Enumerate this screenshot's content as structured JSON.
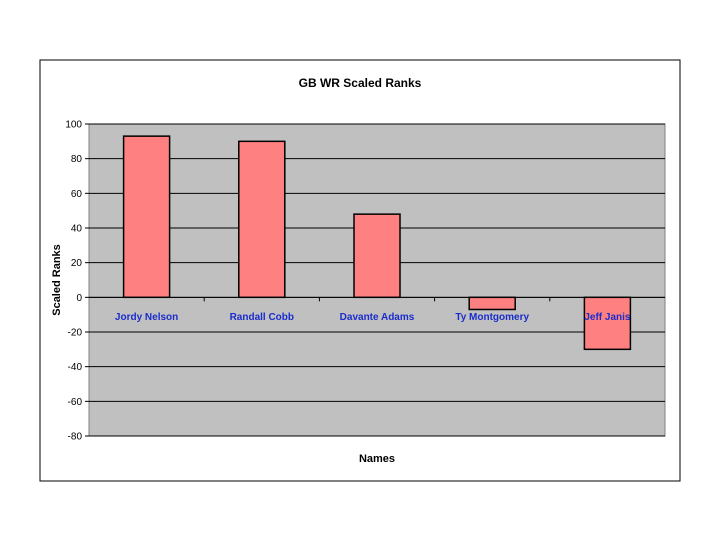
{
  "chart_data": {
    "type": "bar",
    "title": "GB WR Scaled Ranks",
    "xlabel": "Names",
    "ylabel": "Scaled Ranks",
    "categories": [
      "Jordy Nelson",
      "Randall Cobb",
      "Davante Adams",
      "Ty Montgomery",
      "Jeff Janis"
    ],
    "values": [
      93,
      90,
      48,
      -7,
      -30
    ],
    "ylim": [
      -80,
      100
    ],
    "yticks": [
      "100",
      "80",
      "60",
      "40",
      "20",
      "0",
      "-20",
      "-40",
      "-60",
      "-80"
    ],
    "grid": true,
    "legend": "none"
  },
  "colors": {
    "bar_fill": "#ff8080",
    "bar_stroke": "#000000",
    "plot_background": "#c0c0c0",
    "category_label": "#1a2ccc"
  }
}
